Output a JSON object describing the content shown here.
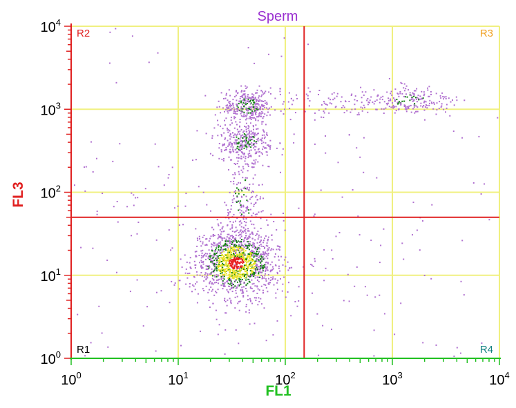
{
  "chart_data": {
    "type": "scatter",
    "title": "Sperm",
    "xlabel": "FL1",
    "ylabel": "FL3",
    "x_scale": "log",
    "y_scale": "log",
    "xlim": [
      1,
      10000
    ],
    "ylim": [
      1,
      10000
    ],
    "x_ticks": [
      {
        "base": "10",
        "exp": "0",
        "value": 1
      },
      {
        "base": "10",
        "exp": "1",
        "value": 10
      },
      {
        "base": "10",
        "exp": "2",
        "value": 100
      },
      {
        "base": "10",
        "exp": "3",
        "value": 1000
      },
      {
        "base": "10",
        "exp": "4",
        "value": 10000
      }
    ],
    "y_ticks": [
      {
        "base": "10",
        "exp": "0",
        "value": 1
      },
      {
        "base": "10",
        "exp": "1",
        "value": 10
      },
      {
        "base": "10",
        "exp": "2",
        "value": 100
      },
      {
        "base": "10",
        "exp": "3",
        "value": 1000
      },
      {
        "base": "10",
        "exp": "4",
        "value": 10000
      }
    ],
    "grid": true,
    "quadrant_gates": {
      "x": 150,
      "y": 50
    },
    "regions": [
      {
        "label": "R1",
        "position": "bottom-left",
        "color": "#000000"
      },
      {
        "label": "R2",
        "position": "top-left",
        "color": "#e02020"
      },
      {
        "label": "R3",
        "position": "top-right",
        "color": "#f0a020"
      },
      {
        "label": "R4",
        "position": "bottom-right",
        "color": "#108080"
      }
    ],
    "populations": [
      {
        "x_center": 35,
        "y_center": 14,
        "x_spread_decades": 0.18,
        "y_spread_decades": 0.2,
        "density": "very high"
      },
      {
        "x_center": 45,
        "y_center": 1100,
        "x_spread_decades": 0.12,
        "y_spread_decades": 0.1,
        "density": "high"
      },
      {
        "x_center": 42,
        "y_center": 400,
        "x_spread_decades": 0.12,
        "y_spread_decades": 0.12,
        "density": "high"
      },
      {
        "x_center": 40,
        "y_center": 80,
        "x_spread_decades": 0.08,
        "y_spread_decades": 0.3,
        "density": "medium"
      },
      {
        "x_center": 1500,
        "y_center": 1300,
        "x_spread_decades": 0.2,
        "y_spread_decades": 0.08,
        "density": "medium"
      },
      {
        "x_center": 400,
        "y_center": 1200,
        "x_spread_decades": 0.35,
        "y_spread_decades": 0.08,
        "density": "low"
      },
      {
        "x_center": 60,
        "y_center": 30,
        "x_spread_decades": 1.2,
        "y_spread_decades": 1.2,
        "density": "sparse"
      }
    ],
    "colors": {
      "grid": "#f0f080",
      "gate": "#e02020",
      "axis_y": "#e02020",
      "axis_x": "#20c020",
      "title": "#9a30d0",
      "ylabel": "#e02020",
      "xlabel": "#20c020",
      "dots_low": "#b070d0",
      "dots_mid": "#108010",
      "dots_high": "#e8e020",
      "dots_peak": "#e82020"
    }
  }
}
